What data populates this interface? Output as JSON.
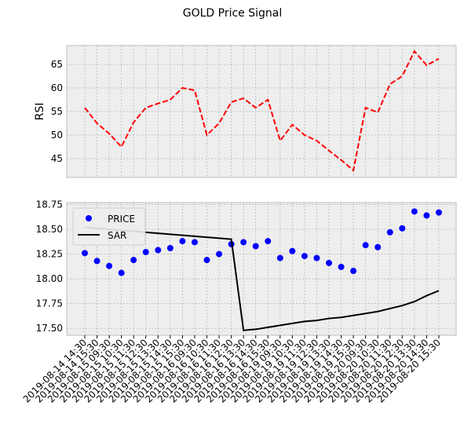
{
  "title": "GOLD Price Signal",
  "chart_data": [
    {
      "type": "line",
      "ylabel": "RSI",
      "values": [
        55.8,
        52.5,
        50.3,
        47.5,
        52.7,
        55.8,
        56.7,
        57.5,
        60,
        59.5,
        50,
        52.5,
        57,
        57.8,
        55.8,
        57.5,
        48.8,
        52.2,
        50,
        48.8,
        46.7,
        44.7,
        42.5,
        55.8,
        54.8,
        60.8,
        62.5,
        67.8,
        64.8,
        66.2
      ],
      "color": "#ff0000",
      "linestyle": "dashed",
      "ylim": [
        41,
        69
      ],
      "yticks": [
        45,
        50,
        55,
        60,
        65
      ],
      "grid": true
    },
    {
      "type": "line",
      "categories": [
        "2019-08-14 14:30",
        "2019-08-14 15:30",
        "2019-08-15 09:30",
        "2019-08-15 10:30",
        "2019-08-15 11:30",
        "2019-08-15 12:30",
        "2019-08-15 13:30",
        "2019-08-15 14:30",
        "2019-08-15 15:30",
        "2019-08-16 09:30",
        "2019-08-16 10:30",
        "2019-08-16 11:30",
        "2019-08-16 12:30",
        "2019-08-16 13:30",
        "2019-08-16 14:30",
        "2019-08-16 15:30",
        "2019-08-19 09:30",
        "2019-08-19 10:30",
        "2019-08-19 11:30",
        "2019-08-19 12:30",
        "2019-08-19 13:30",
        "2019-08-19 14:30",
        "2019-08-19 15:30",
        "2019-08-20 09:30",
        "2019-08-20 10:30",
        "2019-08-20 11:30",
        "2019-08-20 12:30",
        "2019-08-20 13:30",
        "2019-08-20 14:30",
        "2019-08-20 15:30"
      ],
      "series": [
        {
          "name": "PRICE",
          "type": "scatter",
          "color": "#0000ff",
          "values": [
            18.26,
            18.18,
            18.13,
            18.06,
            18.19,
            18.27,
            18.29,
            18.31,
            18.38,
            18.37,
            18.19,
            18.25,
            18.35,
            18.37,
            18.33,
            18.38,
            18.21,
            18.28,
            18.23,
            18.21,
            18.16,
            18.12,
            18.08,
            18.34,
            18.32,
            18.47,
            18.51,
            18.68,
            18.64,
            18.67
          ]
        },
        {
          "name": "SAR",
          "type": "line",
          "color": "#000000",
          "values": [
            18.52,
            18.51,
            18.5,
            18.49,
            18.48,
            18.47,
            18.46,
            18.45,
            18.44,
            18.43,
            18.42,
            18.41,
            18.4,
            17.48,
            17.49,
            17.51,
            17.53,
            17.55,
            17.57,
            17.58,
            17.6,
            17.61,
            17.63,
            17.65,
            17.67,
            17.7,
            17.73,
            17.77,
            17.83,
            17.88
          ]
        }
      ],
      "ylim": [
        17.43,
        18.77
      ],
      "yticks": [
        {
          "value": 17.5,
          "label": "17.50"
        },
        {
          "value": 17.75,
          "label": "17.75"
        },
        {
          "value": 18,
          "label": "18.00"
        },
        {
          "value": 18.25,
          "label": "18.25"
        },
        {
          "value": 18.5,
          "label": "18.50"
        },
        {
          "value": 18.75,
          "label": "18.75"
        }
      ],
      "grid": true,
      "legend": "upper left"
    }
  ]
}
